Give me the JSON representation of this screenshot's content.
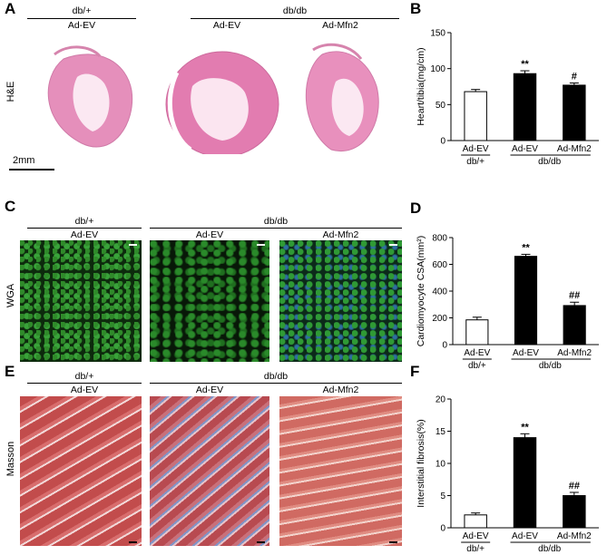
{
  "panels": {
    "A": "A",
    "B": "B",
    "C": "C",
    "D": "D",
    "E": "E",
    "F": "F"
  },
  "groups": {
    "dbplus": "db/+",
    "dbdb": "db/db",
    "ad_ev": "Ad-EV",
    "ad_mfn2": "Ad-Mfn2"
  },
  "stain_labels": {
    "he": "H&E",
    "wga": "WGA",
    "masson": "Masson"
  },
  "scale_bar": "2mm",
  "chart_data": [
    {
      "type": "bar",
      "panel": "B",
      "categories": [
        "Ad-EV",
        "Ad-EV",
        "Ad-Mfn2"
      ],
      "group_labels": [
        "db/+",
        "db/db"
      ],
      "values": [
        68,
        93,
        77
      ],
      "errors": [
        3,
        4,
        3
      ],
      "fills": [
        "#ffffff",
        "#000000",
        "#000000"
      ],
      "annotations": [
        "",
        "**",
        "#"
      ],
      "ylabel": "Heart/tibia(mg/cm)",
      "ylim": [
        0,
        150
      ],
      "yticks": [
        0,
        50,
        100,
        150
      ],
      "ytick_labels": [
        "0",
        "50",
        "100",
        "150"
      ]
    },
    {
      "type": "bar",
      "panel": "D",
      "categories": [
        "Ad-EV",
        "Ad-EV",
        "Ad-Mfn2"
      ],
      "group_labels": [
        "db/+",
        "db/db"
      ],
      "values": [
        185,
        660,
        292
      ],
      "errors": [
        20,
        15,
        25
      ],
      "fills": [
        "#ffffff",
        "#000000",
        "#000000"
      ],
      "annotations": [
        "",
        "**",
        "##"
      ],
      "ylabel": "Cardiomyocyte CSA(mm²)",
      "ylim": [
        0,
        800
      ],
      "yticks": [
        0,
        200,
        400,
        600,
        800
      ],
      "ytick_labels": [
        "0",
        "200",
        "400",
        "600",
        "800"
      ]
    },
    {
      "type": "bar",
      "panel": "F",
      "categories": [
        "Ad-EV",
        "Ad-EV",
        "Ad-Mfn2"
      ],
      "group_labels": [
        "db/+",
        "db/db"
      ],
      "values": [
        2.0,
        14.0,
        5.0
      ],
      "errors": [
        0.3,
        0.6,
        0.5
      ],
      "fills": [
        "#ffffff",
        "#000000",
        "#000000"
      ],
      "annotations": [
        "",
        "**",
        "##"
      ],
      "ylabel": "Interstitial fibrosis(%)",
      "ylim": [
        0,
        20
      ],
      "yticks": [
        0,
        5,
        10,
        15,
        20
      ],
      "ytick_labels": [
        "0",
        "5",
        "10",
        "15",
        "20"
      ]
    }
  ]
}
